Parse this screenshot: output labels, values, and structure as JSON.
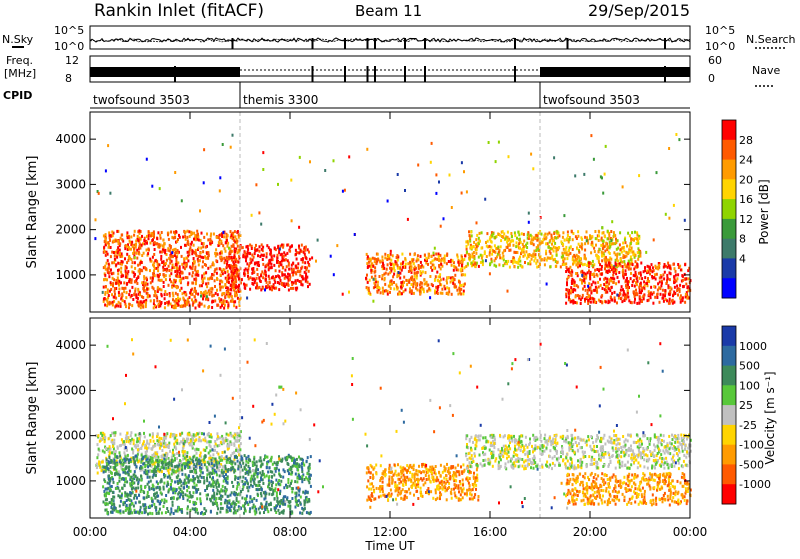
{
  "header": {
    "station": "Rankin Inlet (fitACF)",
    "beam": "Beam 11",
    "date": "29/Sep/2015"
  },
  "top_panels": {
    "nsky_label": "N.Sky",
    "nsky_ticks": [
      "10^5",
      "10^0"
    ],
    "nsearch_label": "N.Search",
    "nsearch_ticks": [
      "10^5",
      "10^0"
    ],
    "freq_label_1": "Freq.",
    "freq_label_2": "[MHz]",
    "freq_ticks": [
      "12",
      "8"
    ],
    "nave_label": "Nave",
    "nave_ticks": [
      "60",
      "0"
    ],
    "cpid_label": "CPID",
    "cpid_segments": [
      {
        "label": "twofsound 3503",
        "start_h": 0,
        "end_h": 6
      },
      {
        "label": "themis 3300",
        "start_h": 6,
        "end_h": 18
      },
      {
        "label": "twofsound 3503",
        "start_h": 18,
        "end_h": 24
      }
    ]
  },
  "power_panel": {
    "ylabel": "Slant Range [km]",
    "cbar_label": "Power [dB]",
    "cbar_ticks": [
      "28",
      "24",
      "20",
      "16",
      "12",
      "8",
      "4"
    ],
    "cbar_colors": [
      "#ff0000",
      "#ff5a00",
      "#ff9b00",
      "#ffd400",
      "#8fd400",
      "#3a9a3a",
      "#3d7a6a",
      "#1a3aa8",
      "#0000ff"
    ]
  },
  "velocity_panel": {
    "ylabel": "Slant Range [km]",
    "cbar_label": "Velocity [m s⁻¹]",
    "cbar_ticks": [
      "1000",
      "500",
      "100",
      "25",
      "-25",
      "-100",
      "-500",
      "-1000"
    ],
    "cbar_colors": [
      "#1a3aa8",
      "#2d6aa0",
      "#3d8a5a",
      "#58c83a",
      "#c0c0c0",
      "#ffd400",
      "#ff9b00",
      "#ff5a00",
      "#ff0000"
    ]
  },
  "xaxis": {
    "label": "Time UT",
    "ticks": [
      "00:00",
      "04:00",
      "08:00",
      "12:00",
      "16:00",
      "20:00",
      "00:00"
    ]
  },
  "chart_data": {
    "type": "heatmap",
    "title": "Rankin Inlet (fitACF) Beam 11 29/Sep/2015",
    "xlabel": "Time UT",
    "ylabel": "Slant Range [km]",
    "xlim_hours": [
      0,
      24
    ],
    "ylim_km": [
      180,
      4600
    ],
    "yticks_km": [
      1000,
      2000,
      3000,
      4000
    ],
    "power_regions": [
      {
        "t0": 0.5,
        "t1": 6.0,
        "r0": 300,
        "r1": 2000,
        "level_db": 24
      },
      {
        "t0": 5.5,
        "t1": 8.8,
        "r0": 700,
        "r1": 1700,
        "level_db": 28
      },
      {
        "t0": 11.0,
        "t1": 15.0,
        "r0": 600,
        "r1": 1500,
        "level_db": 22
      },
      {
        "t0": 15.0,
        "t1": 22.0,
        "r0": 1200,
        "r1": 2000,
        "level_db": 18
      },
      {
        "t0": 19.0,
        "t1": 24.0,
        "r0": 400,
        "r1": 1300,
        "level_db": 26
      }
    ],
    "velocity_regions": [
      {
        "t0": 0.2,
        "t1": 6.0,
        "r0": 1200,
        "r1": 2100,
        "velocity": 0
      },
      {
        "t0": 0.5,
        "t1": 8.8,
        "r0": 300,
        "r1": 1600,
        "velocity": 100
      },
      {
        "t0": 11.0,
        "t1": 15.5,
        "r0": 600,
        "r1": 1400,
        "velocity": -300
      },
      {
        "t0": 15.0,
        "t1": 24.0,
        "r0": 1300,
        "r1": 2050,
        "velocity": 0
      },
      {
        "t0": 19.0,
        "t1": 24.0,
        "r0": 500,
        "r1": 1200,
        "velocity": -100
      }
    ]
  }
}
